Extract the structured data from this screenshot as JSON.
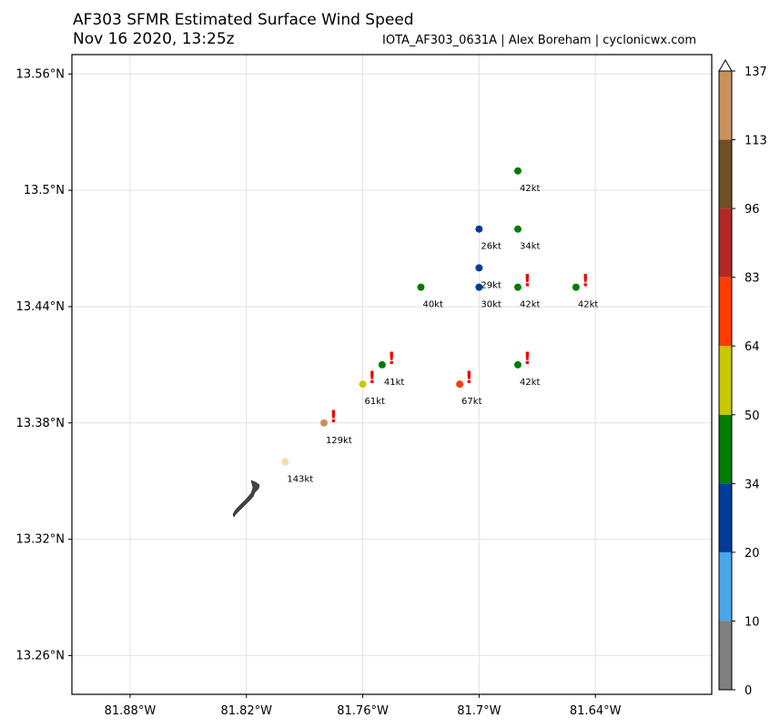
{
  "header": {
    "title": "AF303 SFMR Estimated Surface Wind Speed",
    "subtitle": "Nov 16 2020, 13:25z",
    "credit": "IOTA_AF303_0631A | Alex Boreham | cyclonicwx.com"
  },
  "chart_data": {
    "type": "scatter",
    "title": "AF303 SFMR Estimated Surface Wind Speed",
    "subtitle": "Nov 16 2020, 13:25z",
    "xlim": [
      -81.91,
      -81.58
    ],
    "ylim": [
      13.24,
      13.57
    ],
    "grid": true,
    "x_ticks": [
      -81.88,
      -81.82,
      -81.76,
      -81.7,
      -81.64
    ],
    "x_tick_labels": [
      "81.88°W",
      "81.82°W",
      "81.76°W",
      "81.7°W",
      "81.64°W"
    ],
    "y_ticks": [
      13.26,
      13.32,
      13.38,
      13.44,
      13.5,
      13.56
    ],
    "y_tick_labels": [
      "13.26°N",
      "13.32°N",
      "13.38°N",
      "13.44°N",
      "13.5°N",
      "13.56°N"
    ],
    "points": [
      {
        "lon": -81.68,
        "lat": 13.51,
        "kt": 42,
        "label": "42kt",
        "flag": false,
        "color": "#007c00"
      },
      {
        "lon": -81.7,
        "lat": 13.48,
        "kt": 26,
        "label": "26kt",
        "flag": false,
        "color": "#003c9c"
      },
      {
        "lon": -81.68,
        "lat": 13.48,
        "kt": 34,
        "label": "34kt",
        "flag": false,
        "color": "#007c00"
      },
      {
        "lon": -81.7,
        "lat": 13.46,
        "kt": 29,
        "label": "29kt",
        "flag": false,
        "color": "#003c9c"
      },
      {
        "lon": -81.73,
        "lat": 13.45,
        "kt": 40,
        "label": "40kt",
        "flag": false,
        "color": "#007c00"
      },
      {
        "lon": -81.7,
        "lat": 13.45,
        "kt": 30,
        "label": "30kt",
        "flag": false,
        "color": "#003c9c"
      },
      {
        "lon": -81.68,
        "lat": 13.45,
        "kt": 42,
        "label": "42kt",
        "flag": true,
        "color": "#007c00"
      },
      {
        "lon": -81.65,
        "lat": 13.45,
        "kt": 42,
        "label": "42kt",
        "flag": true,
        "color": "#007c00"
      },
      {
        "lon": -81.75,
        "lat": 13.41,
        "kt": 41,
        "label": "41kt",
        "flag": true,
        "color": "#007c00"
      },
      {
        "lon": -81.68,
        "lat": 13.41,
        "kt": 42,
        "label": "42kt",
        "flag": true,
        "color": "#007c00"
      },
      {
        "lon": -81.76,
        "lat": 13.4,
        "kt": 61,
        "label": "61kt",
        "flag": true,
        "color": "#c8c800"
      },
      {
        "lon": -81.71,
        "lat": 13.4,
        "kt": 67,
        "label": "67kt",
        "flag": true,
        "color": "#ff3c00"
      },
      {
        "lon": -81.78,
        "lat": 13.38,
        "kt": 129,
        "label": "129kt",
        "flag": true,
        "color": "#c8925c"
      },
      {
        "lon": -81.8,
        "lat": 13.36,
        "kt": 143,
        "label": "143kt",
        "flag": false,
        "color": "#ffd8b0"
      }
    ],
    "colorbar": {
      "ticks": [
        "0",
        "10",
        "20",
        "34",
        "50",
        "64",
        "83",
        "96",
        "113",
        "137"
      ],
      "colors": [
        "#808080",
        "#4aa6e8",
        "#003c9c",
        "#007c00",
        "#c8c800",
        "#ff3c00",
        "#b42828",
        "#6e5028",
        "#c8925c"
      ],
      "extend": "max"
    }
  }
}
